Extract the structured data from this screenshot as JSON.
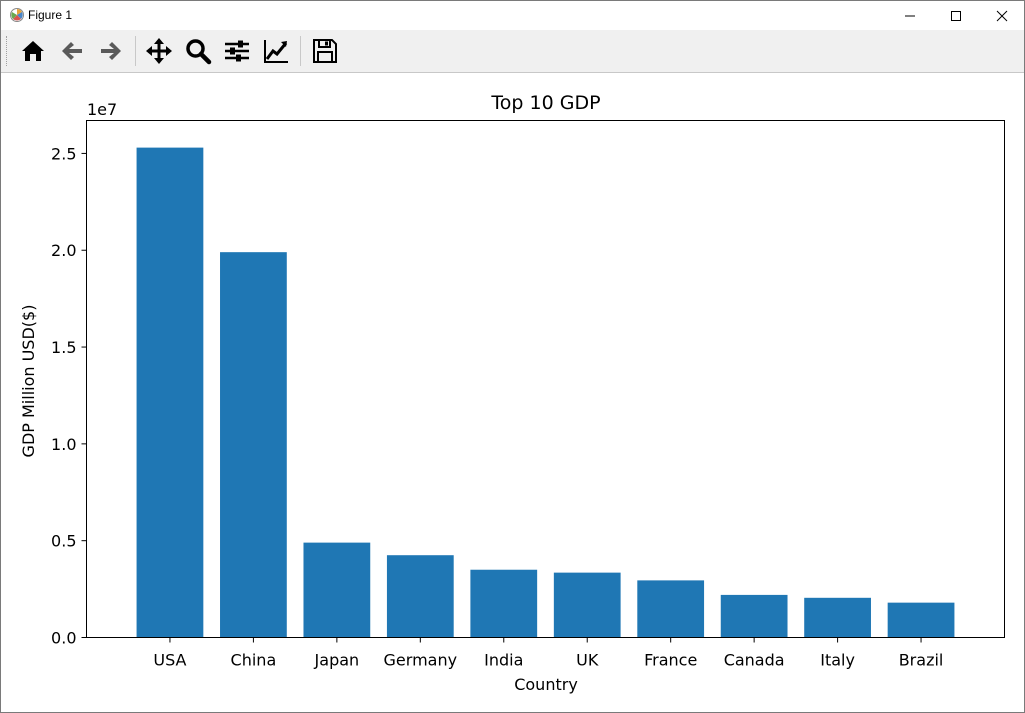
{
  "window": {
    "title": "Figure 1",
    "icon": "matplotlib-logo-icon",
    "controls": [
      "minimize-icon",
      "maximize-icon",
      "close-icon"
    ]
  },
  "toolbar": {
    "buttons": [
      "home-icon",
      "back-arrow-icon",
      "forward-arrow-icon",
      "pan-icon",
      "zoom-icon",
      "configure-subplots-icon",
      "edit-axis-icon",
      "save-icon"
    ]
  },
  "chart_data": {
    "type": "bar",
    "title": "Top 10 GDP",
    "xlabel": "Country",
    "ylabel": "GDP Million USD($)",
    "y_offset_label": "1e7",
    "categories": [
      "USA",
      "China",
      "Japan",
      "Germany",
      "India",
      "UK",
      "France",
      "Canada",
      "Italy",
      "Brazil"
    ],
    "values": [
      25300000,
      19900000,
      4900000,
      4250000,
      3500000,
      3350000,
      2950000,
      2200000,
      2050000,
      1800000
    ],
    "ylim": [
      0,
      26700000
    ],
    "yticks": [
      0,
      5000000,
      10000000,
      15000000,
      20000000,
      25000000
    ],
    "ytick_labels": [
      "0.0",
      "0.5",
      "1.0",
      "1.5",
      "2.0",
      "2.5"
    ],
    "bar_color": "#1f77b4",
    "grid": false,
    "legend": "none"
  }
}
